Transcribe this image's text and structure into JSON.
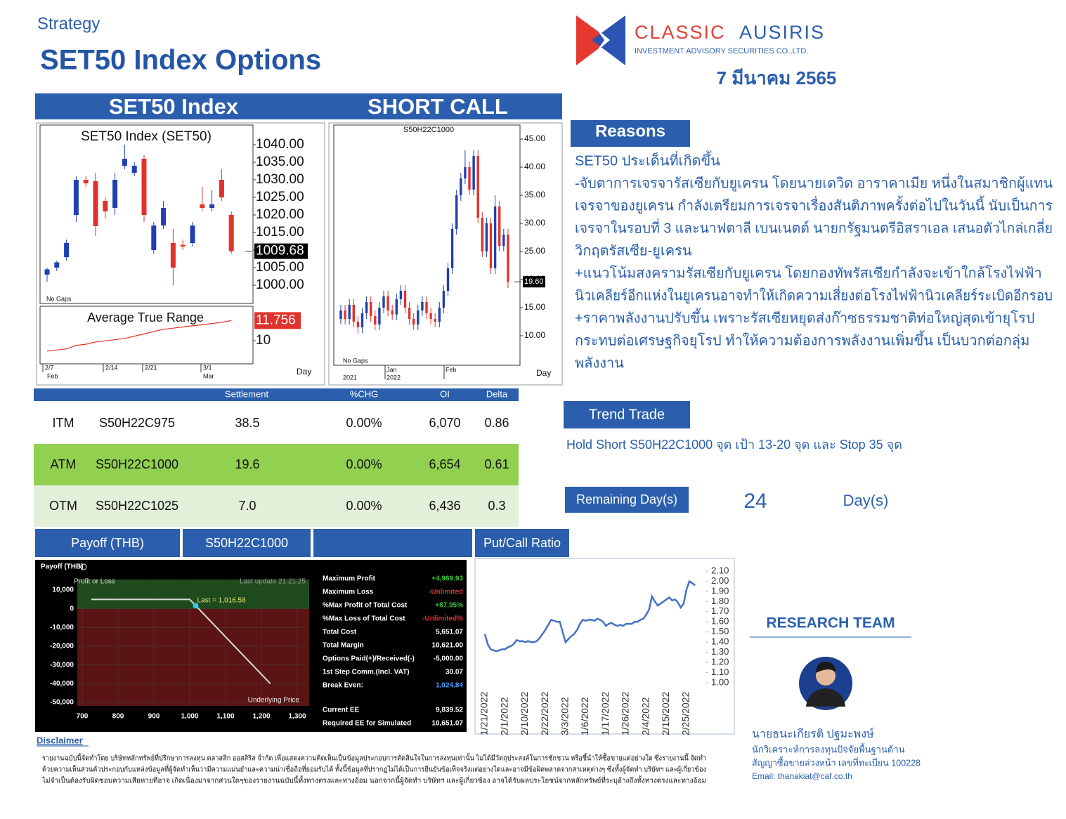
{
  "header": {
    "category": "Strategy",
    "title": "SET50 Index Options",
    "company_name_1": "CLASSIC",
    "company_name_2": "AUSIRIS",
    "company_sub": "INVESTMENT ADVISORY SECURITIES CO.,LTD.",
    "date": "7 มีนาคม 2565"
  },
  "banner": [
    "SET50 Index",
    "SHORT CALL"
  ],
  "set50_chart": {
    "type": "candlestick",
    "title": "SET50  Index  (SET50)",
    "note": "No Gaps",
    "open": [
      1003,
      1005,
      1008,
      1020,
      1030,
      1029.6,
      1024,
      1022,
      1034,
      1032,
      1036,
      1010,
      1017,
      1012,
      1011.5,
      1012,
      1023,
      1022,
      1030,
      1020
    ],
    "high": [
      1005,
      1007,
      1013,
      1031,
      1031,
      1032,
      1025,
      1032,
      1040,
      1035,
      1037,
      1018,
      1024,
      1016,
      1013,
      1018,
      1028,
      1027,
      1033,
      1021
    ],
    "low": [
      1001,
      1004,
      1007,
      1018,
      1028,
      1014,
      1019,
      1020,
      1033,
      1031,
      1018,
      1009,
      1016,
      1000,
      1010,
      1011,
      1021,
      1021,
      1024,
      1009
    ],
    "close": [
      1004.5,
      1006.5,
      1012,
      1030,
      1029,
      1016.8,
      1021,
      1030,
      1036,
      1034,
      1020,
      1017,
      1022,
      1005,
      1011,
      1017,
      1022,
      1023,
      1025,
      1009.68
    ],
    "up_color": "#2140b0",
    "down_color": "#e0322c",
    "ylim": [
      994.8,
      1045.6
    ],
    "yticks": [
      {
        "value": 1000,
        "label": "1000.00"
      },
      {
        "value": 1005,
        "label": "1005.00"
      },
      {
        "value": 1010,
        "label": "1010.00"
      },
      {
        "value": 1015,
        "label": "1015.00"
      },
      {
        "value": 1020,
        "label": "1020.00"
      },
      {
        "value": 1025,
        "label": "1025.00"
      },
      {
        "value": 1030,
        "label": "1030.00"
      },
      {
        "value": 1035,
        "label": "1035.00"
      },
      {
        "value": 1040,
        "label": "1040.00"
      }
    ],
    "x_labels": [
      "2/7",
      "2/14",
      "2/21",
      "3/1"
    ],
    "month_labels": [
      "Feb",
      "Mar"
    ],
    "x_unit": "Day",
    "atr": {
      "title": "Average  True  Range",
      "values": [
        9.1,
        9.2,
        9.3,
        9.6,
        9.7,
        9.9,
        10.0,
        10.1,
        10.2,
        10.4,
        10.6,
        10.8,
        11.0,
        11.1,
        11.2,
        11.3,
        11.4,
        11.5,
        11.6,
        11.756
      ],
      "color": "#e0322c",
      "ylim": [
        8,
        13
      ],
      "yticks": [
        10
      ]
    }
  },
  "call_chart": {
    "type": "candlestick",
    "title": "S50H22C1000",
    "note": "No Gaps",
    "open": [
      13,
      14.5,
      13,
      15.5,
      12.5,
      11.5,
      14,
      16,
      13.5,
      12,
      15,
      17,
      14.5,
      13.8,
      16.5,
      18,
      15,
      13,
      12,
      14.5,
      16,
      14,
      13,
      12.5,
      15,
      18,
      22,
      29,
      35,
      38,
      40,
      36,
      42,
      31,
      25,
      30,
      22,
      33,
      26,
      28
    ],
    "high": [
      15.5,
      15.5,
      16.5,
      16.5,
      13.5,
      15,
      17,
      17,
      14.5,
      16,
      18,
      18,
      15.5,
      17.5,
      19,
      19,
      16,
      14,
      15.5,
      17,
      17,
      15,
      14,
      16,
      19,
      23,
      30,
      36,
      39,
      43,
      41,
      43,
      43,
      32,
      31,
      31,
      35,
      34,
      29,
      29
    ],
    "low": [
      12,
      12,
      12,
      11.5,
      10.5,
      10.5,
      13,
      12.5,
      11,
      11,
      14,
      13.5,
      12.8,
      12.8,
      15.5,
      14,
      12,
      11,
      11,
      13.5,
      13,
      12,
      11.5,
      11.5,
      14,
      17,
      21,
      28,
      34,
      37,
      35,
      35,
      30,
      24,
      24,
      21,
      21,
      25,
      25,
      18.5
    ],
    "close": [
      14.5,
      13,
      15.5,
      12.5,
      11.5,
      14,
      16,
      13.5,
      12,
      15,
      17,
      14.5,
      13.8,
      16.5,
      18,
      15,
      13,
      12,
      14.5,
      16,
      14,
      13,
      12.5,
      15,
      18,
      22,
      29,
      35,
      38,
      40,
      36,
      42,
      31,
      25,
      30,
      22,
      33,
      26,
      28,
      19.6
    ],
    "last_label": "19.60",
    "up_color": "#2140b0",
    "down_color": "#e0322c",
    "ylim": [
      4.75,
      47.5
    ],
    "yticks": [
      {
        "value": 10,
        "label": "10.00"
      },
      {
        "value": 15,
        "label": "15.00"
      },
      {
        "value": 20,
        "label": "20.00"
      },
      {
        "value": 25,
        "label": "25.00"
      },
      {
        "value": 30,
        "label": "30.00"
      },
      {
        "value": 35,
        "label": "35.00"
      },
      {
        "value": 40,
        "label": "40.00"
      },
      {
        "value": 45,
        "label": "45.00"
      }
    ],
    "month_labels": [
      "Jan",
      "Feb"
    ],
    "year_labels": [
      "2021",
      "2022"
    ],
    "x_unit": "Day"
  },
  "table": {
    "headers": [
      "Settlement",
      "%CHG",
      "OI",
      "Delta"
    ],
    "rows": [
      [
        "ITM",
        "S50H22C975",
        "38.5",
        "0.00%",
        "6,070",
        "0.86"
      ],
      [
        "ATM",
        "S50H22C1000",
        "19.6",
        "0.00%",
        "6,654",
        "0.61"
      ],
      [
        "OTM",
        "S50H22C1025",
        "7.0",
        "0.00%",
        "6,436",
        "0.3"
      ]
    ]
  },
  "reasons": {
    "title": "Reasons",
    "lines": [
      "SET50 ประเด็นที่เกิดขึ้น",
      "-จับตาการเจรจารัสเซียกับยูเครน โดยนายเดวิด อาราคาเมีย หนึ่งในสมาชิกผู้แทน",
      "เจรจาของยูเครน กำลังเตรียมการเจรจาเรื่องสันติภาพครั้งต่อไปในวันนี้ นับเป็นการ",
      "เจรจาในรอบที่ 3 และนาฟตาลี เบนเนตต์ นายกรัฐมนตรีอิสราเอล เสนอตัวไกล่เกลี่ย",
      "วิกฤตรัสเซีย-ยูเครน",
      "+แนวโน้มสงครามรัสเซียกับยูเครน โดยกองทัพรัสเซียกำลังจะเข้าใกล้โรงไฟฟ้า",
      "นิวเคลียร์อีกแห่งในยูเครนอาจทำให้เกิดความเสี่ยงต่อโรงไฟฟ้านิวเคลียร์ระเบิดอีกรอบ",
      "+ราคาพลังงานปรับขึ้น เพราะรัสเซียหยุดส่งก๊าซธรรมชาติท่อใหญ่สุดเข้ายุโรป",
      "กระทบต่อเศรษฐกิจยุโรป ทำให้ความต้องการพลังงานเพิ่มขึ้น เป็นบวกต่อกลุ่ม",
      "พลังงาน"
    ]
  },
  "trend": {
    "title": "Trend Trade",
    "text": "Hold Short S50H22C1000 จุด เป้า 13-20 จุด และ Stop 35 จุด"
  },
  "remaining": {
    "label": "Remaining Day(s)",
    "value": 24,
    "unit": "Day(s)"
  },
  "bottom_headers": [
    "Payoff (THB)",
    "S50H22C1000",
    "Put/Call Ratio"
  ],
  "payoff": {
    "type": "line",
    "title": "Payoff (THB)",
    "y_label": "Profit or Loss",
    "update": "Last update 21:21:25",
    "x_label": "Underlying Price",
    "x": [
      725,
      1000,
      1225
    ],
    "values": [
      4969.93,
      4969.93,
      -40000
    ],
    "color": "#d9d9d9",
    "last_point": {
      "x": 1016.58,
      "value": 1653.93,
      "label": "Last = 1,016.58"
    },
    "xlim": [
      686.3,
      1333.3
    ],
    "ylim": [
      -51875,
      15625
    ],
    "yticks": [
      {
        "value": 10000,
        "label": "10,000"
      },
      0,
      {
        "value": -10000,
        "label": "-10,000"
      },
      {
        "value": -20000,
        "label": "-20,000"
      },
      {
        "value": -30000,
        "label": "-30,000"
      },
      {
        "value": -40000,
        "label": "-40,000"
      },
      {
        "value": -50000,
        "label": "-50,000"
      }
    ],
    "xticks": [
      700,
      800,
      900,
      {
        "value": 1000,
        "label": "1,000"
      },
      {
        "value": 1100,
        "label": "1,100"
      },
      {
        "value": 1200,
        "label": "1,200"
      },
      {
        "value": 1300,
        "label": "1,300"
      }
    ],
    "stats": [
      {
        "label": "Maximum Profit",
        "value": "+4,969.93",
        "color": "#3cc43c"
      },
      {
        "label": "Maximum Loss",
        "value": "-Unlimited",
        "color": "#e03030"
      },
      {
        "label": "%Max Profit of Total Cost",
        "value": "+87.95%",
        "color": "#3cc43c"
      },
      {
        "label": "%Max Loss of Total Cost",
        "value": "-Unlimited%",
        "color": "#e03030"
      },
      {
        "label": "Total Cost",
        "value": "5,651.07",
        "color": "#ffffff"
      },
      {
        "label": "Total Margin",
        "value": "10,621.00",
        "color": "#ffffff"
      },
      {
        "label": "Options Paid(+)/Received(-)",
        "value": "-5,000.00",
        "color": "#ffffff"
      },
      {
        "label": "1st Step Comm.(Incl. VAT)",
        "value": "30.07",
        "color": "#ffffff"
      },
      {
        "label": "Break Even:",
        "value": "1,024.84",
        "color": "#4aa3ff"
      }
    ],
    "ee_stats": [
      {
        "label": "Current EE",
        "value": "9,839.52",
        "color": "#ffffff"
      },
      {
        "label": "Required EE for Simulated",
        "value": "10,651.07",
        "color": "#ffffff"
      }
    ]
  },
  "pcr_chart": {
    "type": "line",
    "categories": [
      "1/21/2022",
      null,
      null,
      null,
      null,
      null,
      null,
      "2/1/2022",
      null,
      null,
      null,
      null,
      null,
      null,
      "2/10/2022",
      null,
      null,
      null,
      null,
      null,
      null,
      "2/22/2022",
      null,
      null,
      null,
      null,
      null,
      null,
      "3/3/2022",
      null,
      null,
      null,
      null,
      null,
      null,
      "1/6/2022",
      null,
      null,
      null,
      null,
      null,
      null,
      "1/17/2022",
      null,
      null,
      null,
      null,
      null,
      null,
      "1/26/2022",
      null,
      null,
      null,
      null,
      null,
      null,
      "2/4/2022",
      null,
      null,
      null,
      null,
      null,
      null,
      "2/15/2022",
      null,
      null,
      null,
      null,
      null,
      null,
      "2/25/2022",
      null,
      null,
      null
    ],
    "values": [
      1.48,
      1.38,
      1.33,
      1.32,
      1.31,
      1.32,
      1.33,
      1.33,
      1.35,
      1.36,
      1.38,
      1.42,
      1.41,
      1.41,
      1.4,
      1.41,
      1.4,
      1.4,
      1.41,
      1.44,
      1.48,
      1.52,
      1.57,
      1.62,
      1.61,
      1.6,
      1.6,
      1.5,
      1.4,
      1.43,
      1.46,
      1.48,
      1.52,
      1.58,
      1.62,
      1.61,
      1.62,
      1.62,
      1.61,
      1.63,
      1.62,
      1.6,
      1.56,
      1.58,
      1.59,
      1.57,
      1.56,
      1.57,
      1.56,
      1.58,
      1.58,
      1.58,
      1.6,
      1.6,
      1.62,
      1.63,
      1.67,
      1.72,
      1.85,
      1.8,
      1.76,
      1.78,
      1.8,
      1.82,
      1.84,
      1.81,
      1.82,
      1.79,
      1.74,
      1.78,
      1.92,
      2.0,
      1.98,
      1.96
    ],
    "color": "#4472c4",
    "ylim": [
      0.945,
      2.155
    ],
    "yticks": [
      {
        "value": 1.0,
        "label": "1.00"
      },
      {
        "value": 1.1,
        "label": "1.10"
      },
      {
        "value": 1.2,
        "label": "1.20"
      },
      {
        "value": 1.3,
        "label": "1.30"
      },
      {
        "value": 1.4,
        "label": "1.40"
      },
      {
        "value": 1.5,
        "label": "1.50"
      },
      {
        "value": 1.6,
        "label": "1.60"
      },
      {
        "value": 1.7,
        "label": "1.70"
      },
      {
        "value": 1.8,
        "label": "1.80"
      },
      {
        "value": 1.9,
        "label": "1.90"
      },
      {
        "value": 2.0,
        "label": "2.00"
      },
      {
        "value": 2.1,
        "label": "2.10"
      }
    ]
  },
  "research": {
    "title": "RESEARCH TEAM",
    "name": "นายธนะเกียรติ ปฐมะพงษ์",
    "role_lines": [
      "นักวิเคราะห์การลงทุนปัจจัยพื้นฐานด้าน",
      "สัญญาซื้อขายล่วงหน้า เลขที่ทะเบียน 100228"
    ],
    "email": "Email: thanakiat@caf.co.th"
  },
  "disclaimer": {
    "title": "Disclaimer",
    "lines": [
      "รายงานฉบับนี้จัดทำโดย บริษัทหลักทรัพย์ที่ปรึกษาการลงทุน คลาสสิก ออสสิริส จำกัด เพื่อแสดงความคิดเห็นเป็นข้อมูลประกอบการตัดสินใจในการลงทุนเท่านั้น ไม่ได้มีวัตถุประสงค์ในการชักชวน หรือชี้นำให้ซื้อขายแต่อย่างใด ซึ่งรายงานนี้ จัดทำ",
      "ด้วยความเห็นส่วนตัวประกอบกับแหล่งข้อมูลที่ผู้จัดทำเห็นว่ามีความแม่นยำและความน่าเชื่อถือที่ยอมรับได้ ทั้งนี้ข้อมูลที่ปรากฏไม่ได้เป็นการยืนยันข้อเท็จจริงแต่อย่างใดและอาจมีข้อผิดพลาดจากสาเหตุต่างๆ ซึ่งทั้งผู้จัดทำ บริษัทฯ และผู้เกี่ยวข้อง",
      "ไม่จำเป็นต้องรับผิดชอบความเสียหายที่อาจ เกิดเนื่องมาจากส่วนใดๆของรายงานฉบับนี้ทั้งทางตรงและทางอ้อม นอกจากนี้ผู้จัดทำ บริษัทฯ และผู้เกี่ยวข้อง อาจได้รับผลประโยชน์จากหลักทรัพย์ที่ระบุอ้างถึงทั้งทางตรงและทางอ้อม"
    ]
  }
}
